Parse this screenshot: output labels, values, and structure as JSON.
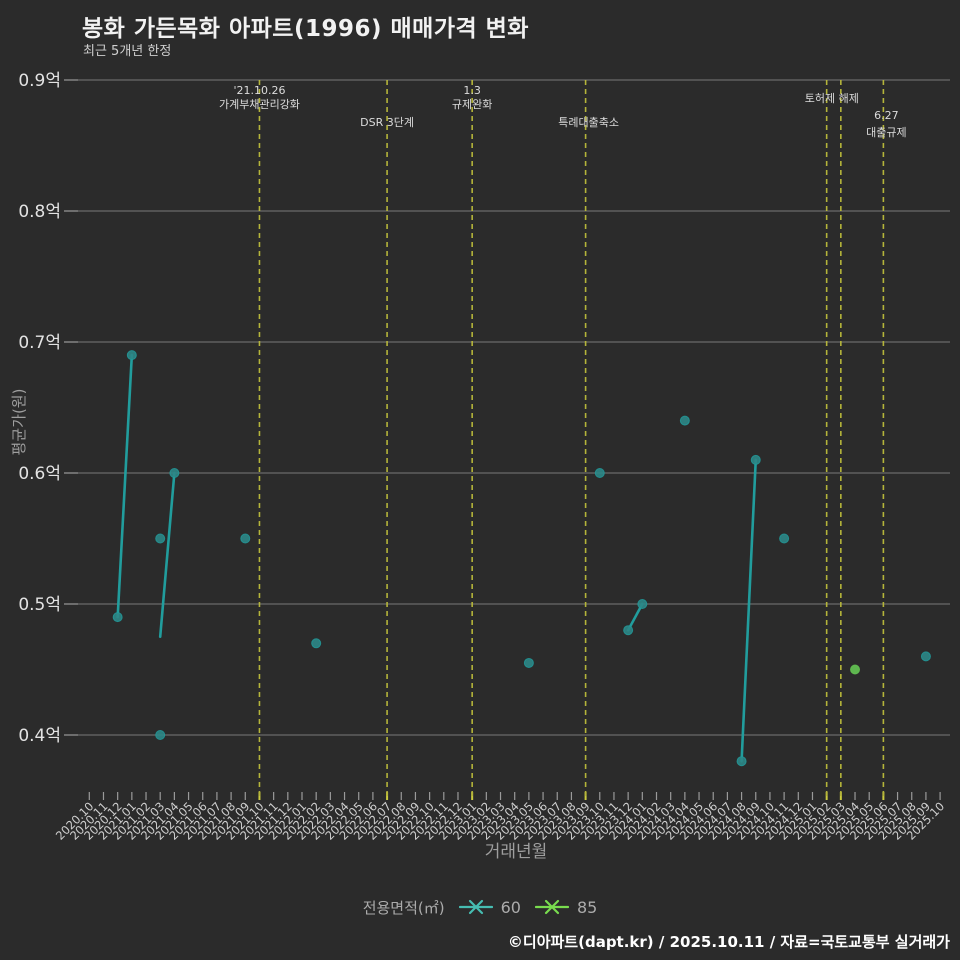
{
  "chart_data": {
    "type": "scatter",
    "title": "봉화 가든목화 아파트(1996) 매매가격 변화",
    "subtitle": "최근 5개년 한정",
    "xlabel": "거래년월",
    "ylabel": "평균가(원)",
    "ylim": [
      0.35,
      0.9
    ],
    "grid": true,
    "yticks": [
      {
        "label": "0.9억",
        "value": 0.9
      },
      {
        "label": "0.8억",
        "value": 0.8
      },
      {
        "label": "0.7억",
        "value": 0.7
      },
      {
        "label": "0.6억",
        "value": 0.6
      },
      {
        "label": "0.5억",
        "value": 0.5
      },
      {
        "label": "0.4억",
        "value": 0.4
      }
    ],
    "x_categories": [
      "2020.10",
      "2020.11",
      "2020.12",
      "2021.01",
      "2021.02",
      "2021.03",
      "2021.04",
      "2021.05",
      "2021.06",
      "2021.07",
      "2021.08",
      "2021.09",
      "2021.10",
      "2021.11",
      "2021.12",
      "2022.01",
      "2022.02",
      "2022.03",
      "2022.04",
      "2022.05",
      "2022.06",
      "2022.07",
      "2022.08",
      "2022.09",
      "2022.10",
      "2022.11",
      "2022.12",
      "2023.01",
      "2023.02",
      "2023.03",
      "2023.04",
      "2023.05",
      "2023.06",
      "2023.07",
      "2023.08",
      "2023.09",
      "2023.10",
      "2023.11",
      "2023.12",
      "2024.01",
      "2024.02",
      "2024.03",
      "2024.04",
      "2024.05",
      "2024.06",
      "2024.07",
      "2024.08",
      "2024.09",
      "2024.10",
      "2024.11",
      "2024.12",
      "2025.01",
      "2025.02",
      "2025.03",
      "2025.04",
      "2025.05",
      "2025.06",
      "2025.07",
      "2025.08",
      "2025.09",
      "2025.10"
    ],
    "series": [
      {
        "name": "60",
        "dot_color": "#2c8787",
        "line_color": "#219d9d",
        "points": [
          [
            "2020.12",
            0.49
          ],
          [
            "2021.01",
            0.69
          ],
          [
            "2021.03",
            0.55
          ],
          [
            "2021.03",
            0.4
          ],
          [
            "2021.04",
            0.6
          ],
          [
            "2021.09",
            0.55
          ],
          [
            "2022.02",
            0.47
          ],
          [
            "2023.05",
            0.455
          ],
          [
            "2023.10",
            0.6
          ],
          [
            "2023.12",
            0.48
          ],
          [
            "2024.01",
            0.5
          ],
          [
            "2024.04",
            0.64
          ],
          [
            "2024.08",
            0.38
          ],
          [
            "2024.09",
            0.61
          ],
          [
            "2024.11",
            0.55
          ],
          [
            "2025.09",
            0.46
          ]
        ],
        "segments": [
          [
            [
              "2020.12",
              0.49
            ],
            [
              "2021.01",
              0.69
            ]
          ],
          [
            [
              "2021.03",
              0.475
            ],
            [
              "2021.04",
              0.6
            ]
          ],
          [
            [
              "2023.12",
              0.48
            ],
            [
              "2024.01",
              0.5
            ]
          ],
          [
            [
              "2024.08",
              0.38
            ],
            [
              "2024.09",
              0.61
            ]
          ]
        ]
      },
      {
        "name": "85",
        "dot_color": "#64c553",
        "line_color": "#64c553",
        "points": [
          [
            "2025.04",
            0.45
          ]
        ],
        "segments": []
      }
    ],
    "policy_events": {
      "line_color": "#b5b53a",
      "tick_color": "#cbcb3f",
      "lines_at": [
        "2021.10",
        "2022.07",
        "2023.01",
        "2023.09",
        "2025.02",
        "2025.03",
        "2025.06"
      ],
      "labels": [
        {
          "rows": [
            "'21.10.26",
            "가계부채관리강화"
          ],
          "month": "2021.10",
          "dx": 0,
          "ys": [
            94,
            108
          ]
        },
        {
          "rows": [
            "DSR 3단계"
          ],
          "month": "2022.07",
          "dx": 0,
          "ys": [
            126
          ]
        },
        {
          "rows": [
            "1.3",
            "규제완화"
          ],
          "month": "2023.01",
          "dx": 0,
          "ys": [
            94,
            108
          ]
        },
        {
          "rows": [
            "특례대출축소"
          ],
          "month": "2023.09",
          "dx": 3,
          "ys": [
            126
          ]
        },
        {
          "rows": [
            "토허제 해제"
          ],
          "month": "2025.03",
          "dx": -9,
          "ys": [
            102
          ]
        },
        {
          "rows": [
            "6.27",
            "대출규제"
          ],
          "month": "2025.06",
          "dx": 3,
          "ys": [
            119,
            136
          ]
        }
      ]
    },
    "legend": {
      "label": "전용면적(㎡)",
      "items": [
        {
          "name": "60",
          "color": "#46bdb2"
        },
        {
          "name": "85",
          "color": "#79dc4e"
        }
      ]
    }
  },
  "footer": {
    "text": "©디아파트(dapt.kr) / 2025.10.11 / 자료=국토교통부 실거래가"
  }
}
